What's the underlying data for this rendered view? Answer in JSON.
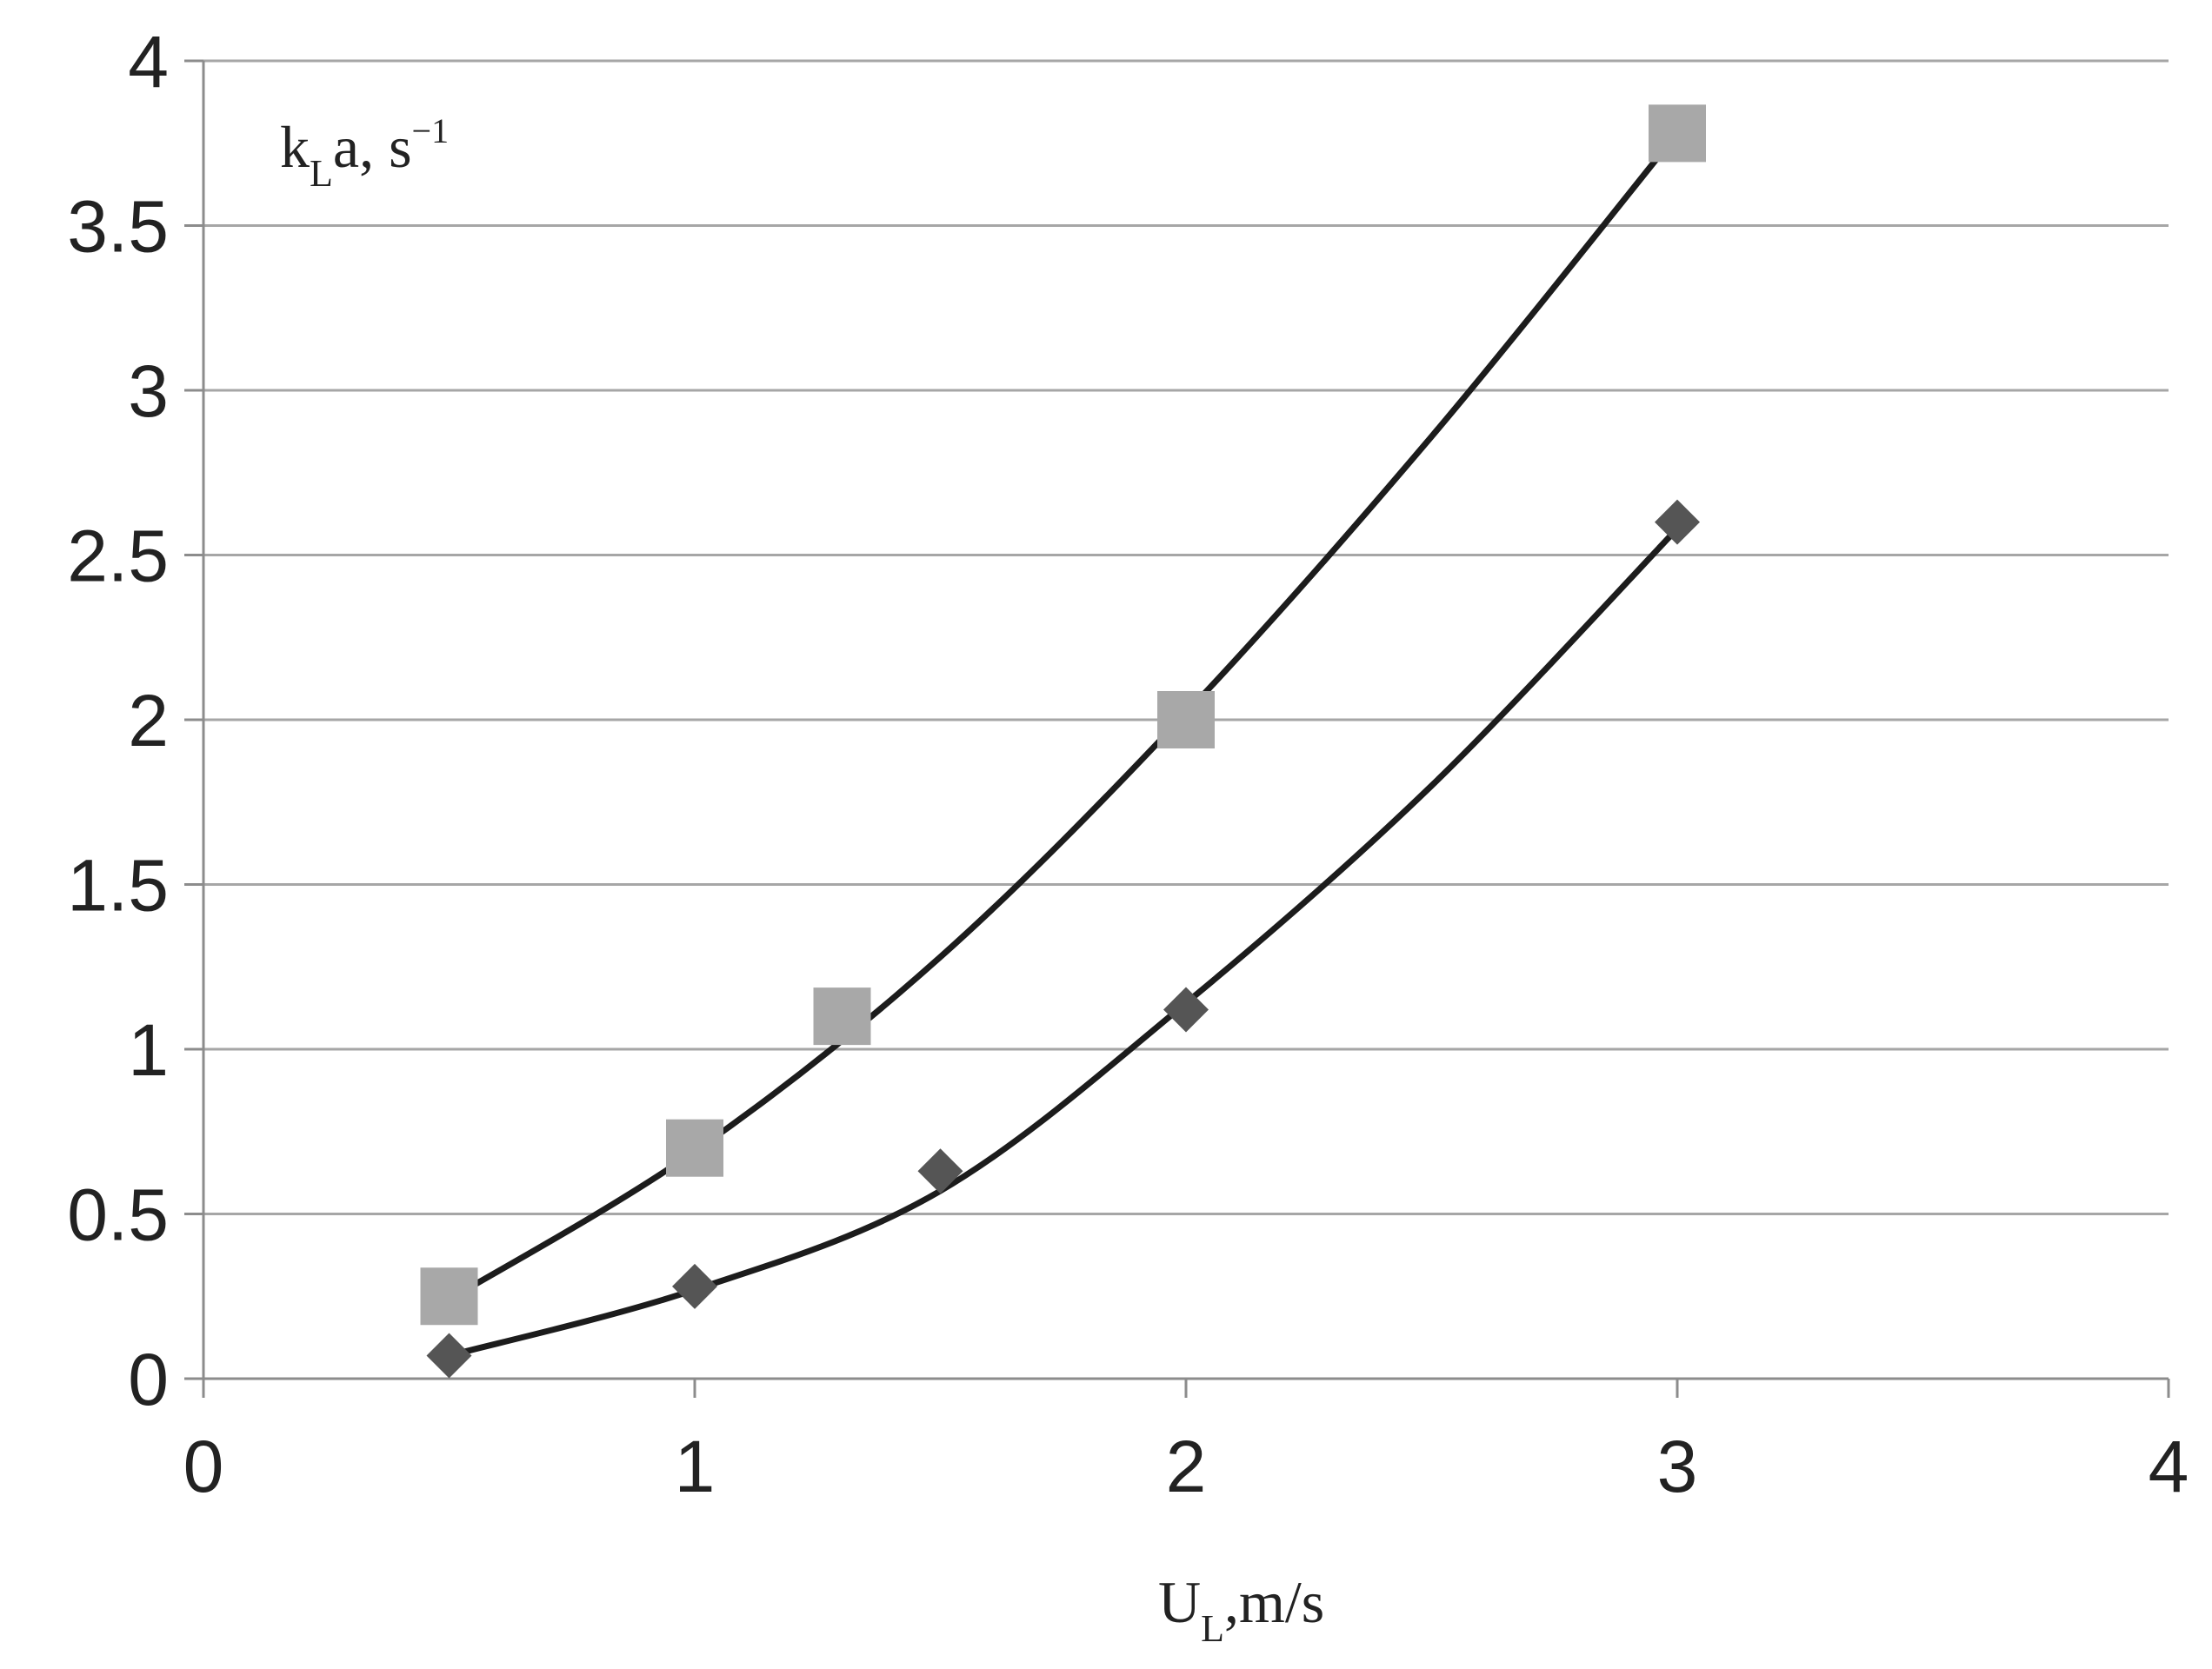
{
  "chart_data": {
    "type": "scatter",
    "xlim": [
      0,
      4
    ],
    "ylim": [
      0,
      4
    ],
    "x_ticks": [
      "0",
      "1",
      "2",
      "3",
      "4"
    ],
    "y_ticks": [
      "0",
      "0.5",
      "1",
      "1.5",
      "2",
      "2.5",
      "3",
      "3.5",
      "4"
    ],
    "grid": "horizontal",
    "xlabel": {
      "main": "U",
      "sub": "L",
      "rest": ",m/s"
    },
    "ylabel": {
      "main": "k",
      "sub": "L",
      "mid": "a, s",
      "sup": "−1"
    },
    "series": [
      {
        "marker": "square",
        "color": "#a8a8a8",
        "points": [
          [
            0.5,
            0.25
          ],
          [
            1.0,
            0.7
          ],
          [
            1.3,
            1.1
          ],
          [
            2.0,
            2.0
          ],
          [
            3.0,
            3.78
          ]
        ],
        "trend": [
          [
            0.5,
            0.24
          ],
          [
            1.0,
            0.69
          ],
          [
            1.5,
            1.28
          ],
          [
            2.0,
            2.02
          ],
          [
            2.5,
            2.86
          ],
          [
            3.0,
            3.78
          ]
        ]
      },
      {
        "marker": "diamond",
        "color": "#555555",
        "points": [
          [
            0.5,
            0.07
          ],
          [
            1.0,
            0.28
          ],
          [
            1.5,
            0.63
          ],
          [
            2.0,
            1.12
          ],
          [
            3.0,
            2.6
          ]
        ],
        "trend": [
          [
            0.5,
            0.07
          ],
          [
            1.0,
            0.27
          ],
          [
            1.5,
            0.57
          ],
          [
            2.0,
            1.14
          ],
          [
            2.5,
            1.8
          ],
          [
            3.0,
            2.58
          ]
        ]
      }
    ]
  }
}
